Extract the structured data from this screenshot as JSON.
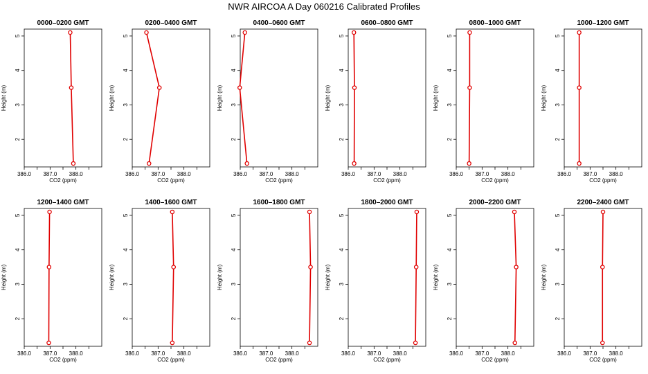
{
  "figure": {
    "title": "NWR AIRCOA A  Day 060216  Calibrated Profiles"
  },
  "colors": {
    "series": "#e00000",
    "axis": "#000000"
  },
  "chart_data": [
    {
      "type": "line",
      "title": "0000–0200 GMT",
      "xlabel": "CO2 (ppm)",
      "ylabel": "Height (m)",
      "xlim": [
        386.0,
        389.0
      ],
      "ylim": [
        1.2,
        5.2
      ],
      "x_ticks": [
        "386.0",
        "387.0",
        "388.0"
      ],
      "y_ticks": [
        "2",
        "3",
        "4",
        "5"
      ],
      "grid": false,
      "series": [
        {
          "x": [
            387.78,
            387.82,
            387.9
          ],
          "y": [
            5.1,
            3.5,
            1.3
          ]
        }
      ]
    },
    {
      "type": "line",
      "title": "0200–0400 GMT",
      "xlabel": "CO2 (ppm)",
      "ylabel": "Height (m)",
      "xlim": [
        386.0,
        389.0
      ],
      "ylim": [
        1.2,
        5.2
      ],
      "x_ticks": [
        "386.0",
        "387.0",
        "388.0"
      ],
      "y_ticks": [
        "2",
        "3",
        "4",
        "5"
      ],
      "grid": false,
      "series": [
        {
          "x": [
            386.55,
            387.05,
            386.65
          ],
          "y": [
            5.1,
            3.5,
            1.3
          ]
        }
      ]
    },
    {
      "type": "line",
      "title": "0400–0600 GMT",
      "xlabel": "CO2 (ppm)",
      "ylabel": "Height (m)",
      "xlim": [
        386.0,
        389.0
      ],
      "ylim": [
        1.2,
        5.2
      ],
      "x_ticks": [
        "386.0",
        "387.0",
        "388.0"
      ],
      "y_ticks": [
        "2",
        "3",
        "4",
        "5"
      ],
      "grid": false,
      "series": [
        {
          "x": [
            386.18,
            385.98,
            386.26
          ],
          "y": [
            5.1,
            3.5,
            1.3
          ]
        }
      ]
    },
    {
      "type": "line",
      "title": "0600–0800 GMT",
      "xlabel": "CO2 (ppm)",
      "ylabel": "Height (m)",
      "xlim": [
        386.0,
        389.0
      ],
      "ylim": [
        1.2,
        5.2
      ],
      "x_ticks": [
        "386.0",
        "387.0",
        "388.0"
      ],
      "y_ticks": [
        "2",
        "3",
        "4",
        "5"
      ],
      "grid": false,
      "series": [
        {
          "x": [
            386.22,
            386.24,
            386.23
          ],
          "y": [
            5.1,
            3.5,
            1.3
          ]
        }
      ]
    },
    {
      "type": "line",
      "title": "0800–1000 GMT",
      "xlabel": "CO2 (ppm)",
      "ylabel": "Height (m)",
      "xlim": [
        386.0,
        389.0
      ],
      "ylim": [
        1.2,
        5.2
      ],
      "x_ticks": [
        "386.0",
        "387.0",
        "388.0"
      ],
      "y_ticks": [
        "2",
        "3",
        "4",
        "5"
      ],
      "grid": false,
      "series": [
        {
          "x": [
            386.52,
            386.52,
            386.5
          ],
          "y": [
            5.1,
            3.5,
            1.3
          ]
        }
      ]
    },
    {
      "type": "line",
      "title": "1000–1200 GMT",
      "xlabel": "CO2 (ppm)",
      "ylabel": "Height (m)",
      "xlim": [
        386.0,
        389.0
      ],
      "ylim": [
        1.2,
        5.2
      ],
      "x_ticks": [
        "386.0",
        "387.0",
        "388.0"
      ],
      "y_ticks": [
        "2",
        "3",
        "4",
        "5"
      ],
      "grid": false,
      "series": [
        {
          "x": [
            386.58,
            386.58,
            386.58
          ],
          "y": [
            5.1,
            3.5,
            1.3
          ]
        }
      ]
    },
    {
      "type": "line",
      "title": "1200–1400 GMT",
      "xlabel": "CO2 (ppm)",
      "ylabel": "Height (m)",
      "xlim": [
        386.0,
        389.0
      ],
      "ylim": [
        1.2,
        5.2
      ],
      "x_ticks": [
        "386.0",
        "387.0",
        "388.0"
      ],
      "y_ticks": [
        "2",
        "3",
        "4",
        "5"
      ],
      "grid": false,
      "series": [
        {
          "x": [
            386.98,
            386.96,
            386.95
          ],
          "y": [
            5.1,
            3.5,
            1.3
          ]
        }
      ]
    },
    {
      "type": "line",
      "title": "1400–1600 GMT",
      "xlabel": "CO2 (ppm)",
      "ylabel": "Height (m)",
      "xlim": [
        386.0,
        389.0
      ],
      "ylim": [
        1.2,
        5.2
      ],
      "x_ticks": [
        "386.0",
        "387.0",
        "388.0"
      ],
      "y_ticks": [
        "2",
        "3",
        "4",
        "5"
      ],
      "grid": false,
      "series": [
        {
          "x": [
            387.55,
            387.6,
            387.55
          ],
          "y": [
            5.1,
            3.5,
            1.3
          ]
        }
      ]
    },
    {
      "type": "line",
      "title": "1600–1800 GMT",
      "xlabel": "CO2 (ppm)",
      "ylabel": "Height (m)",
      "xlim": [
        386.0,
        389.0
      ],
      "ylim": [
        1.2,
        5.2
      ],
      "x_ticks": [
        "386.0",
        "387.0",
        "388.0"
      ],
      "y_ticks": [
        "2",
        "3",
        "4",
        "5"
      ],
      "grid": false,
      "series": [
        {
          "x": [
            388.68,
            388.72,
            388.68
          ],
          "y": [
            5.1,
            3.5,
            1.3
          ]
        }
      ]
    },
    {
      "type": "line",
      "title": "1800–2000 GMT",
      "xlabel": "CO2 (ppm)",
      "ylabel": "Height (m)",
      "xlim": [
        386.0,
        389.0
      ],
      "ylim": [
        1.2,
        5.2
      ],
      "x_ticks": [
        "386.0",
        "387.0",
        "388.0"
      ],
      "y_ticks": [
        "2",
        "3",
        "4",
        "5"
      ],
      "grid": false,
      "series": [
        {
          "x": [
            388.65,
            388.63,
            388.6
          ],
          "y": [
            5.1,
            3.5,
            1.3
          ]
        }
      ]
    },
    {
      "type": "line",
      "title": "2000–2200 GMT",
      "xlabel": "CO2 (ppm)",
      "ylabel": "Height (m)",
      "xlim": [
        386.0,
        389.0
      ],
      "ylim": [
        1.2,
        5.2
      ],
      "x_ticks": [
        "386.0",
        "387.0",
        "388.0"
      ],
      "y_ticks": [
        "2",
        "3",
        "4",
        "5"
      ],
      "grid": false,
      "series": [
        {
          "x": [
            388.25,
            388.32,
            388.27
          ],
          "y": [
            5.1,
            3.5,
            1.3
          ]
        }
      ]
    },
    {
      "type": "line",
      "title": "2200–2400 GMT",
      "xlabel": "CO2 (ppm)",
      "ylabel": "Height (m)",
      "xlim": [
        386.0,
        389.0
      ],
      "ylim": [
        1.2,
        5.2
      ],
      "x_ticks": [
        "386.0",
        "387.0",
        "388.0"
      ],
      "y_ticks": [
        "2",
        "3",
        "4",
        "5"
      ],
      "grid": false,
      "series": [
        {
          "x": [
            387.5,
            387.48,
            387.48
          ],
          "y": [
            5.1,
            3.5,
            1.3
          ]
        }
      ]
    }
  ]
}
